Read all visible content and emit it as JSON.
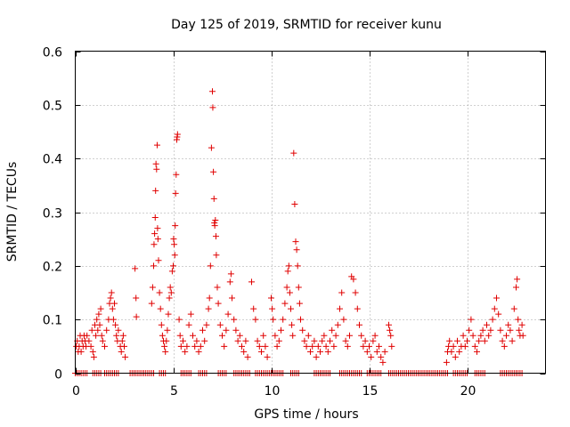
{
  "chart_data": {
    "type": "scatter",
    "title": "Day 125 of 2019, SRMTID for receiver kunu",
    "xlabel": "GPS time / hours",
    "ylabel": "SRMTID / TECUs",
    "xlim": [
      0,
      24
    ],
    "ylim": [
      0,
      0.6
    ],
    "xticks": [
      0,
      5,
      10,
      15,
      20
    ],
    "yticks": [
      0,
      0.1,
      0.2,
      0.3,
      0.4,
      0.5,
      0.6
    ],
    "ytick_labels": [
      "0",
      "0.1",
      "0.2",
      "0.3",
      "0.4",
      "0.5",
      "0.6"
    ],
    "grid": true,
    "marker": "+",
    "color": "#e00000",
    "series": [
      {
        "name": "SRMTID",
        "points": [
          [
            0.05,
            0.05
          ],
          [
            0.1,
            0.06
          ],
          [
            0.15,
            0.04
          ],
          [
            0.2,
            0.05
          ],
          [
            0.25,
            0.07
          ],
          [
            0.3,
            0.04
          ],
          [
            0.35,
            0.06
          ],
          [
            0.4,
            0.05
          ],
          [
            0.45,
            0.07
          ],
          [
            0.5,
            0.06
          ],
          [
            0.55,
            0.05
          ],
          [
            0.6,
            0.07
          ],
          [
            0.7,
            0.06
          ],
          [
            0.8,
            0.05
          ],
          [
            0.85,
            0.08
          ],
          [
            0.9,
            0.04
          ],
          [
            0.95,
            0.03
          ],
          [
            1.0,
            0.09
          ],
          [
            1.05,
            0.07
          ],
          [
            1.1,
            0.1
          ],
          [
            1.15,
            0.08
          ],
          [
            1.2,
            0.11
          ],
          [
            1.25,
            0.09
          ],
          [
            1.3,
            0.12
          ],
          [
            1.35,
            0.07
          ],
          [
            1.4,
            0.06
          ],
          [
            1.5,
            0.05
          ],
          [
            1.6,
            0.08
          ],
          [
            1.7,
            0.1
          ],
          [
            1.75,
            0.13
          ],
          [
            1.8,
            0.14
          ],
          [
            1.85,
            0.15
          ],
          [
            1.9,
            0.12
          ],
          [
            1.95,
            0.1
          ],
          [
            2.0,
            0.13
          ],
          [
            2.05,
            0.09
          ],
          [
            2.1,
            0.07
          ],
          [
            2.15,
            0.06
          ],
          [
            2.2,
            0.08
          ],
          [
            2.3,
            0.05
          ],
          [
            2.35,
            0.04
          ],
          [
            2.4,
            0.06
          ],
          [
            2.45,
            0.07
          ],
          [
            2.5,
            0.05
          ],
          [
            2.55,
            0.03
          ],
          [
            3.05,
            0.195
          ],
          [
            3.1,
            0.14
          ],
          [
            3.12,
            0.105
          ],
          [
            3.9,
            0.13
          ],
          [
            3.95,
            0.16
          ],
          [
            4.0,
            0.2
          ],
          [
            4.02,
            0.24
          ],
          [
            4.05,
            0.26
          ],
          [
            4.08,
            0.29
          ],
          [
            4.1,
            0.34
          ],
          [
            4.12,
            0.39
          ],
          [
            4.15,
            0.38
          ],
          [
            4.18,
            0.425
          ],
          [
            4.2,
            0.27
          ],
          [
            4.22,
            0.25
          ],
          [
            4.25,
            0.21
          ],
          [
            4.3,
            0.15
          ],
          [
            4.35,
            0.12
          ],
          [
            4.4,
            0.09
          ],
          [
            4.45,
            0.07
          ],
          [
            4.5,
            0.06
          ],
          [
            4.55,
            0.05
          ],
          [
            4.6,
            0.04
          ],
          [
            4.65,
            0.06
          ],
          [
            4.7,
            0.08
          ],
          [
            4.75,
            0.11
          ],
          [
            4.8,
            0.14
          ],
          [
            4.85,
            0.16
          ],
          [
            4.9,
            0.15
          ],
          [
            4.95,
            0.19
          ],
          [
            5.0,
            0.2
          ],
          [
            5.02,
            0.25
          ],
          [
            5.05,
            0.24
          ],
          [
            5.08,
            0.22
          ],
          [
            5.1,
            0.275
          ],
          [
            5.12,
            0.335
          ],
          [
            5.15,
            0.37
          ],
          [
            5.18,
            0.435
          ],
          [
            5.2,
            0.44
          ],
          [
            5.22,
            0.445
          ],
          [
            5.3,
            0.1
          ],
          [
            5.35,
            0.07
          ],
          [
            5.4,
            0.05
          ],
          [
            5.5,
            0.06
          ],
          [
            5.6,
            0.04
          ],
          [
            5.7,
            0.05
          ],
          [
            5.8,
            0.09
          ],
          [
            5.9,
            0.11
          ],
          [
            6.0,
            0.07
          ],
          [
            6.1,
            0.05
          ],
          [
            6.2,
            0.06
          ],
          [
            6.3,
            0.04
          ],
          [
            6.4,
            0.05
          ],
          [
            6.5,
            0.08
          ],
          [
            6.6,
            0.06
          ],
          [
            6.7,
            0.09
          ],
          [
            6.8,
            0.12
          ],
          [
            6.85,
            0.14
          ],
          [
            6.9,
            0.2
          ],
          [
            6.95,
            0.42
          ],
          [
            7.0,
            0.525
          ],
          [
            7.02,
            0.495
          ],
          [
            7.05,
            0.375
          ],
          [
            7.08,
            0.325
          ],
          [
            7.1,
            0.28
          ],
          [
            7.12,
            0.275
          ],
          [
            7.15,
            0.285
          ],
          [
            7.18,
            0.255
          ],
          [
            7.2,
            0.22
          ],
          [
            7.25,
            0.16
          ],
          [
            7.3,
            0.13
          ],
          [
            7.4,
            0.09
          ],
          [
            7.5,
            0.07
          ],
          [
            7.6,
            0.05
          ],
          [
            7.7,
            0.08
          ],
          [
            7.8,
            0.11
          ],
          [
            7.9,
            0.17
          ],
          [
            7.95,
            0.185
          ],
          [
            8.0,
            0.14
          ],
          [
            8.1,
            0.1
          ],
          [
            8.2,
            0.08
          ],
          [
            8.3,
            0.06
          ],
          [
            8.4,
            0.07
          ],
          [
            8.5,
            0.05
          ],
          [
            8.6,
            0.04
          ],
          [
            8.7,
            0.06
          ],
          [
            8.8,
            0.03
          ],
          [
            9.0,
            0.17
          ],
          [
            9.1,
            0.12
          ],
          [
            9.2,
            0.1
          ],
          [
            9.3,
            0.06
          ],
          [
            9.4,
            0.05
          ],
          [
            9.5,
            0.04
          ],
          [
            9.6,
            0.07
          ],
          [
            9.7,
            0.05
          ],
          [
            9.8,
            0.03
          ],
          [
            10.0,
            0.14
          ],
          [
            10.05,
            0.12
          ],
          [
            10.1,
            0.1
          ],
          [
            10.2,
            0.07
          ],
          [
            10.3,
            0.05
          ],
          [
            10.4,
            0.06
          ],
          [
            10.5,
            0.08
          ],
          [
            10.6,
            0.1
          ],
          [
            10.7,
            0.13
          ],
          [
            10.8,
            0.16
          ],
          [
            10.85,
            0.19
          ],
          [
            10.9,
            0.2
          ],
          [
            10.95,
            0.15
          ],
          [
            11.0,
            0.12
          ],
          [
            11.05,
            0.09
          ],
          [
            11.1,
            0.07
          ],
          [
            11.15,
            0.41
          ],
          [
            11.2,
            0.315
          ],
          [
            11.25,
            0.245
          ],
          [
            11.3,
            0.23
          ],
          [
            11.35,
            0.2
          ],
          [
            11.4,
            0.16
          ],
          [
            11.45,
            0.13
          ],
          [
            11.5,
            0.1
          ],
          [
            11.6,
            0.08
          ],
          [
            11.7,
            0.06
          ],
          [
            11.8,
            0.05
          ],
          [
            11.9,
            0.07
          ],
          [
            12.0,
            0.04
          ],
          [
            12.1,
            0.05
          ],
          [
            12.2,
            0.06
          ],
          [
            12.3,
            0.03
          ],
          [
            12.4,
            0.05
          ],
          [
            12.5,
            0.04
          ],
          [
            12.6,
            0.06
          ],
          [
            12.7,
            0.07
          ],
          [
            12.8,
            0.05
          ],
          [
            12.9,
            0.04
          ],
          [
            13.0,
            0.06
          ],
          [
            13.1,
            0.08
          ],
          [
            13.2,
            0.05
          ],
          [
            13.3,
            0.07
          ],
          [
            13.4,
            0.09
          ],
          [
            13.5,
            0.12
          ],
          [
            13.6,
            0.15
          ],
          [
            13.7,
            0.1
          ],
          [
            13.8,
            0.06
          ],
          [
            13.9,
            0.05
          ],
          [
            14.0,
            0.07
          ],
          [
            14.1,
            0.18
          ],
          [
            14.2,
            0.175
          ],
          [
            14.3,
            0.15
          ],
          [
            14.4,
            0.12
          ],
          [
            14.5,
            0.09
          ],
          [
            14.6,
            0.07
          ],
          [
            14.7,
            0.05
          ],
          [
            14.8,
            0.06
          ],
          [
            14.9,
            0.04
          ],
          [
            15.0,
            0.05
          ],
          [
            15.1,
            0.03
          ],
          [
            15.2,
            0.06
          ],
          [
            15.3,
            0.07
          ],
          [
            15.4,
            0.04
          ],
          [
            15.5,
            0.05
          ],
          [
            15.6,
            0.03
          ],
          [
            15.7,
            0.02
          ],
          [
            15.8,
            0.04
          ],
          [
            16.0,
            0.09
          ],
          [
            16.05,
            0.08
          ],
          [
            16.1,
            0.07
          ],
          [
            16.15,
            0.05
          ],
          [
            18.95,
            0.02
          ],
          [
            19.0,
            0.04
          ],
          [
            19.05,
            0.05
          ],
          [
            19.1,
            0.06
          ],
          [
            19.2,
            0.04
          ],
          [
            19.3,
            0.05
          ],
          [
            19.4,
            0.03
          ],
          [
            19.5,
            0.06
          ],
          [
            19.6,
            0.04
          ],
          [
            19.7,
            0.05
          ],
          [
            19.8,
            0.07
          ],
          [
            19.9,
            0.05
          ],
          [
            20.0,
            0.06
          ],
          [
            20.1,
            0.08
          ],
          [
            20.2,
            0.1
          ],
          [
            20.3,
            0.07
          ],
          [
            20.4,
            0.05
          ],
          [
            20.5,
            0.04
          ],
          [
            20.6,
            0.06
          ],
          [
            20.7,
            0.07
          ],
          [
            20.8,
            0.08
          ],
          [
            20.9,
            0.06
          ],
          [
            21.0,
            0.09
          ],
          [
            21.1,
            0.07
          ],
          [
            21.2,
            0.08
          ],
          [
            21.3,
            0.1
          ],
          [
            21.4,
            0.12
          ],
          [
            21.5,
            0.14
          ],
          [
            21.6,
            0.11
          ],
          [
            21.7,
            0.08
          ],
          [
            21.8,
            0.06
          ],
          [
            21.9,
            0.05
          ],
          [
            22.0,
            0.07
          ],
          [
            22.1,
            0.09
          ],
          [
            22.2,
            0.08
          ],
          [
            22.3,
            0.06
          ],
          [
            22.4,
            0.12
          ],
          [
            22.5,
            0.16
          ],
          [
            22.55,
            0.175
          ],
          [
            22.6,
            0.1
          ],
          [
            22.65,
            0.08
          ],
          [
            22.7,
            0.07
          ],
          [
            22.8,
            0.09
          ],
          [
            22.85,
            0.07
          ]
        ],
        "zero_segments": [
          [
            0,
            0.6
          ],
          [
            0.9,
            1.3
          ],
          [
            1.5,
            2.2
          ],
          [
            2.8,
            4.0
          ],
          [
            4.3,
            4.6
          ],
          [
            5.4,
            5.9
          ],
          [
            6.3,
            6.7
          ],
          [
            7.3,
            7.7
          ],
          [
            8.1,
            8.9
          ],
          [
            9.2,
            10.6
          ],
          [
            11.0,
            11.4
          ],
          [
            12.2,
            13.0
          ],
          [
            13.5,
            14.6
          ],
          [
            14.9,
            15.6
          ],
          [
            16.0,
            19.0
          ],
          [
            19.3,
            20.0
          ],
          [
            20.4,
            20.9
          ],
          [
            21.7,
            22.8
          ]
        ]
      }
    ]
  }
}
